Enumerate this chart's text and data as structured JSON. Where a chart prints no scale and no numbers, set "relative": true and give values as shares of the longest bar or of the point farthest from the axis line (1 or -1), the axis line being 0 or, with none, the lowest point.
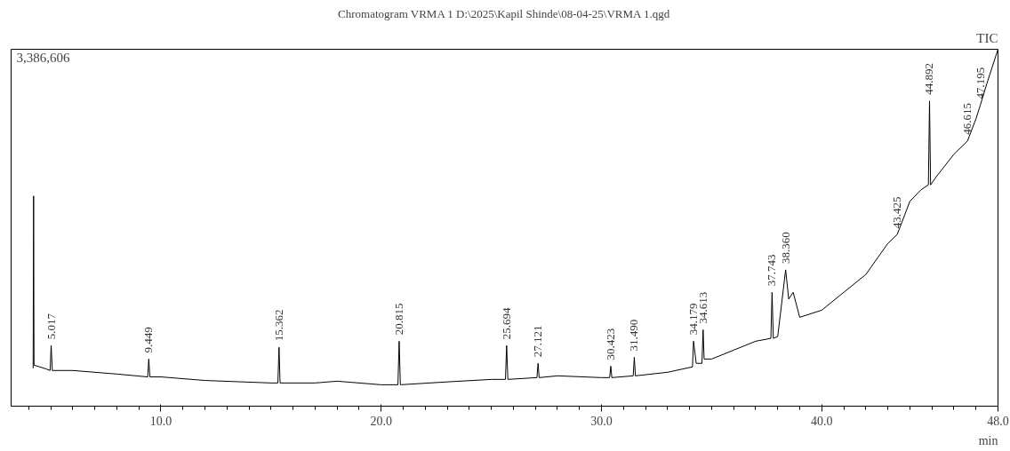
{
  "chart_data": {
    "type": "line",
    "title": "Chromatogram VRMA 1 D:\\2025\\Kapil Shinde\\08-04-25\\VRMA 1.qgd",
    "xlabel": "min",
    "relative": true,
    "grid": false,
    "tick_labels": "x",
    "xlim": [
      3.2,
      48
    ],
    "xticks": [
      {
        "value": 10,
        "label": "10.0"
      },
      {
        "value": 20,
        "label": "20.0"
      },
      {
        "value": 30,
        "label": "30.0"
      },
      {
        "value": 40,
        "label": "40.0"
      },
      {
        "value": 48,
        "label": "48.0"
      }
    ],
    "x": [
      4.2,
      4.22,
      4.24,
      4.76,
      4.97,
      5.017,
      5.07,
      6,
      8,
      9.4,
      9.449,
      9.5,
      10,
      12,
      15,
      15.31,
      15.362,
      15.41,
      17,
      18,
      20,
      20.76,
      20.815,
      20.87,
      23,
      25,
      25.64,
      25.694,
      25.75,
      27.07,
      27.121,
      27.17,
      28,
      30,
      30.37,
      30.423,
      30.47,
      31.44,
      31.49,
      31.54,
      33,
      34.13,
      34.179,
      34.3,
      34.56,
      34.613,
      34.66,
      35,
      36,
      37,
      37.69,
      37.743,
      37.8,
      38,
      38.36,
      38.5,
      38.7,
      39,
      40,
      41,
      42,
      43,
      43.425,
      44,
      44.5,
      44.84,
      44.892,
      44.94,
      45.2,
      46,
      46.615,
      47,
      47.195,
      47.5,
      48
    ],
    "series": [
      {
        "color": "#000000",
        "values": [
          0.107,
          0.589,
          0.115,
          0.105,
          0.1,
          0.17,
          0.1,
          0.1,
          0.09,
          0.082,
          0.132,
          0.082,
          0.082,
          0.072,
          0.065,
          0.065,
          0.165,
          0.065,
          0.065,
          0.07,
          0.06,
          0.06,
          0.182,
          0.06,
          0.068,
          0.075,
          0.075,
          0.17,
          0.075,
          0.08,
          0.12,
          0.08,
          0.085,
          0.08,
          0.08,
          0.112,
          0.08,
          0.085,
          0.137,
          0.085,
          0.095,
          0.11,
          0.182,
          0.12,
          0.12,
          0.214,
          0.132,
          0.132,
          0.157,
          0.182,
          0.19,
          0.319,
          0.19,
          0.195,
          0.382,
          0.3,
          0.319,
          0.249,
          0.269,
          0.319,
          0.369,
          0.456,
          0.481,
          0.574,
          0.606,
          0.62,
          0.855,
          0.62,
          0.643,
          0.706,
          0.743,
          0.805,
          0.843,
          0.905,
          1.0
        ]
      }
    ],
    "annotations": [
      "3,386,606",
      "TIC",
      {
        "text": "5.017",
        "x": 5.017,
        "y": 0.17
      },
      {
        "text": "9.449",
        "x": 9.449,
        "y": 0.132
      },
      {
        "text": "15.362",
        "x": 15.362,
        "y": 0.165
      },
      {
        "text": "20.815",
        "x": 20.815,
        "y": 0.182
      },
      {
        "text": "25.694",
        "x": 25.694,
        "y": 0.17
      },
      {
        "text": "27.121",
        "x": 27.121,
        "y": 0.12
      },
      {
        "text": "30.423",
        "x": 30.423,
        "y": 0.112
      },
      {
        "text": "31.490",
        "x": 31.49,
        "y": 0.137
      },
      {
        "text": "34.179",
        "x": 34.179,
        "y": 0.182
      },
      {
        "text": "34.613",
        "x": 34.613,
        "y": 0.214
      },
      {
        "text": "37.743",
        "x": 37.743,
        "y": 0.319
      },
      {
        "text": "38.360",
        "x": 38.36,
        "y": 0.382
      },
      {
        "text": "43.425",
        "x": 43.425,
        "y": 0.481
      },
      {
        "text": "44.892",
        "x": 44.892,
        "y": 0.855
      },
      {
        "text": "46.615",
        "x": 46.615,
        "y": 0.743
      },
      {
        "text": "47.195",
        "x": 47.195,
        "y": 0.843
      }
    ]
  }
}
